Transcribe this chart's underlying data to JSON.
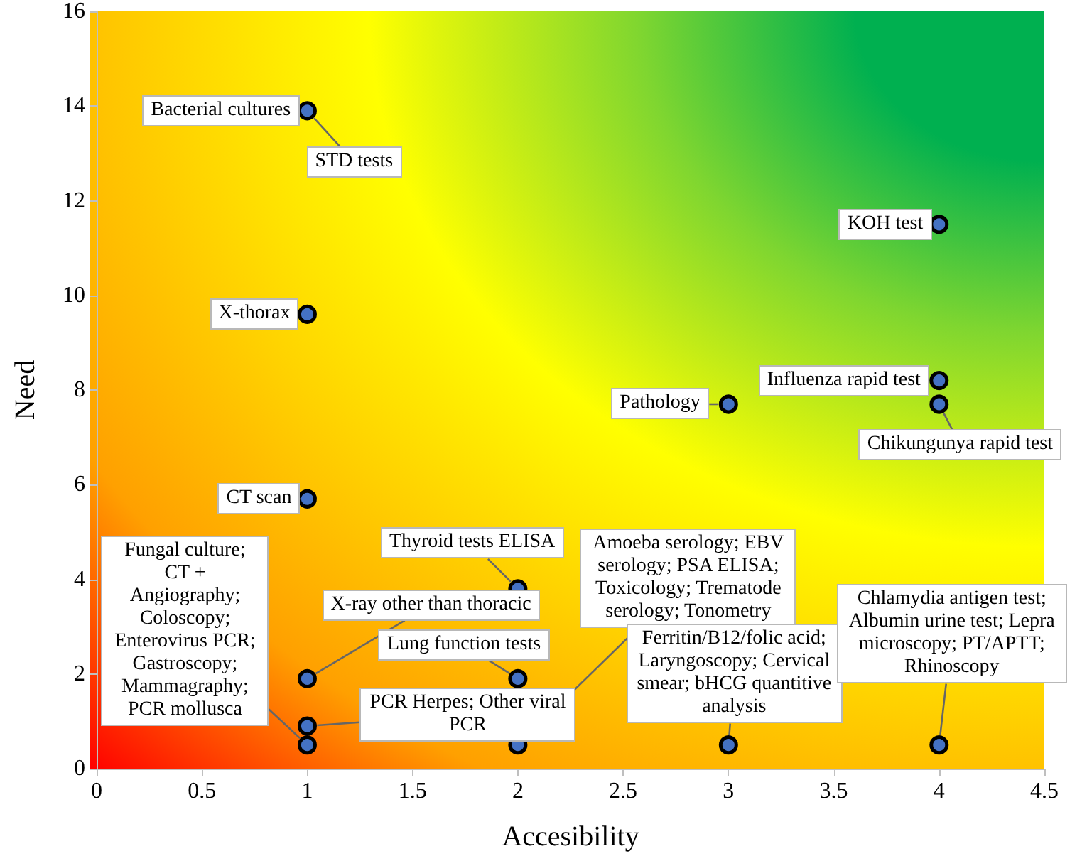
{
  "chart_data": {
    "type": "scatter",
    "xlabel": "Accesibility",
    "ylabel": "Need",
    "x": [
      1,
      1,
      1,
      1,
      1,
      1,
      2,
      2,
      2,
      3,
      3,
      4,
      4,
      4,
      4
    ],
    "values": [
      13.9,
      9.6,
      5.7,
      1.9,
      0.9,
      0.5,
      3.8,
      1.9,
      0.5,
      0.5,
      7.7,
      11.5,
      8.2,
      7.7,
      0.5
    ],
    "color": "#4472c4",
    "marker": "circle",
    "xlim": [
      0,
      4.5
    ],
    "xticks": [
      0,
      0.5,
      1,
      1.5,
      2,
      2.5,
      3,
      3.5,
      4,
      4.5
    ],
    "ylim": [
      0,
      16
    ],
    "yticks": [
      0,
      2,
      4,
      6,
      8,
      10,
      12,
      14,
      16
    ],
    "annotations": [
      {
        "text": "Bacterial cultures",
        "x": 1,
        "y": 13.9
      },
      {
        "text": "STD tests",
        "x": 1,
        "y": 13.9
      },
      {
        "text": "X-thorax",
        "x": 1,
        "y": 9.6
      },
      {
        "text": "CT scan",
        "x": 1,
        "y": 5.7
      },
      {
        "text": "Fungal culture; CT + Angiography; Coloscopy; Enterovirus PCR; Gastroscopy; Mammagraphy; PCR mollusca",
        "x": 1,
        "y": 0.5
      },
      {
        "text": "X-ray other than thoracic",
        "x": 1,
        "y": 1.9
      },
      {
        "text": "PCR Herpes; Other viral PCR",
        "x": 1,
        "y": 0.9
      },
      {
        "text": "Thyroid tests ELISA",
        "x": 2,
        "y": 3.8
      },
      {
        "text": "Lung function tests",
        "x": 2,
        "y": 1.9
      },
      {
        "text": "Amoeba serology; EBV serology; PSA ELISA; Toxicology; Trematode serology; Tonometry",
        "x": 2,
        "y": 0.5
      },
      {
        "text": "Ferritin/B12/folic acid; Laryngoscopy; Cervical smear; bHCG quantitive analysis",
        "x": 3,
        "y": 0.5
      },
      {
        "text": "Pathology",
        "x": 3,
        "y": 7.7
      },
      {
        "text": "KOH test",
        "x": 4,
        "y": 11.5
      },
      {
        "text": "Influenza rapid test",
        "x": 4,
        "y": 8.2
      },
      {
        "text": "Chikungunya rapid test",
        "x": 4,
        "y": 7.7
      },
      {
        "text": "Chlamydia antigen test; Albumin urine test; Lepra microscopy; PT/APTT; Rhinoscopy",
        "x": 4,
        "y": 0.5
      }
    ]
  }
}
